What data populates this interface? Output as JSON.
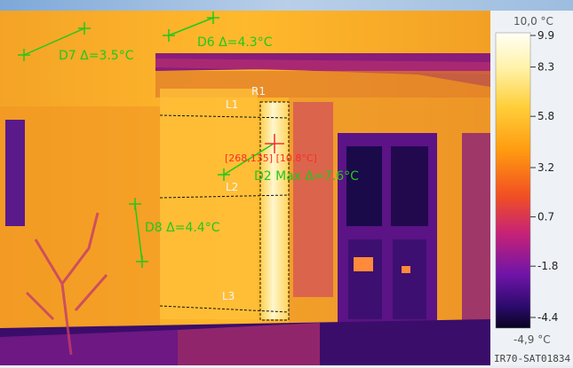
{
  "scale": {
    "max_label": "10,0 °C",
    "min_label": "-4,9 °C",
    "ticks": [
      "9.9",
      "8.3",
      "5.8",
      "3.2",
      "0.7",
      "-1.8",
      "-4.4"
    ],
    "tick_values": [
      9.9,
      8.3,
      5.8,
      3.2,
      0.7,
      -1.8,
      -4.4
    ],
    "range": [
      -4.9,
      10.0
    ]
  },
  "annotations": {
    "d7": "D7 Δ=3.5°C",
    "d6": "D6 Δ=4.3°C",
    "d2": "D2 Max Δ=7.6°C",
    "d8": "D8 Δ=4.4°C",
    "cursor": "[268,135] [10.8°C]"
  },
  "lines": {
    "r1": "R1",
    "l1": "L1",
    "l2": "L2",
    "l3": "L3"
  },
  "footer": {
    "image_id": "IR70-SAT01834"
  },
  "colors": {
    "annotation": "#22c81a",
    "cursor": "#ff2a2a"
  }
}
